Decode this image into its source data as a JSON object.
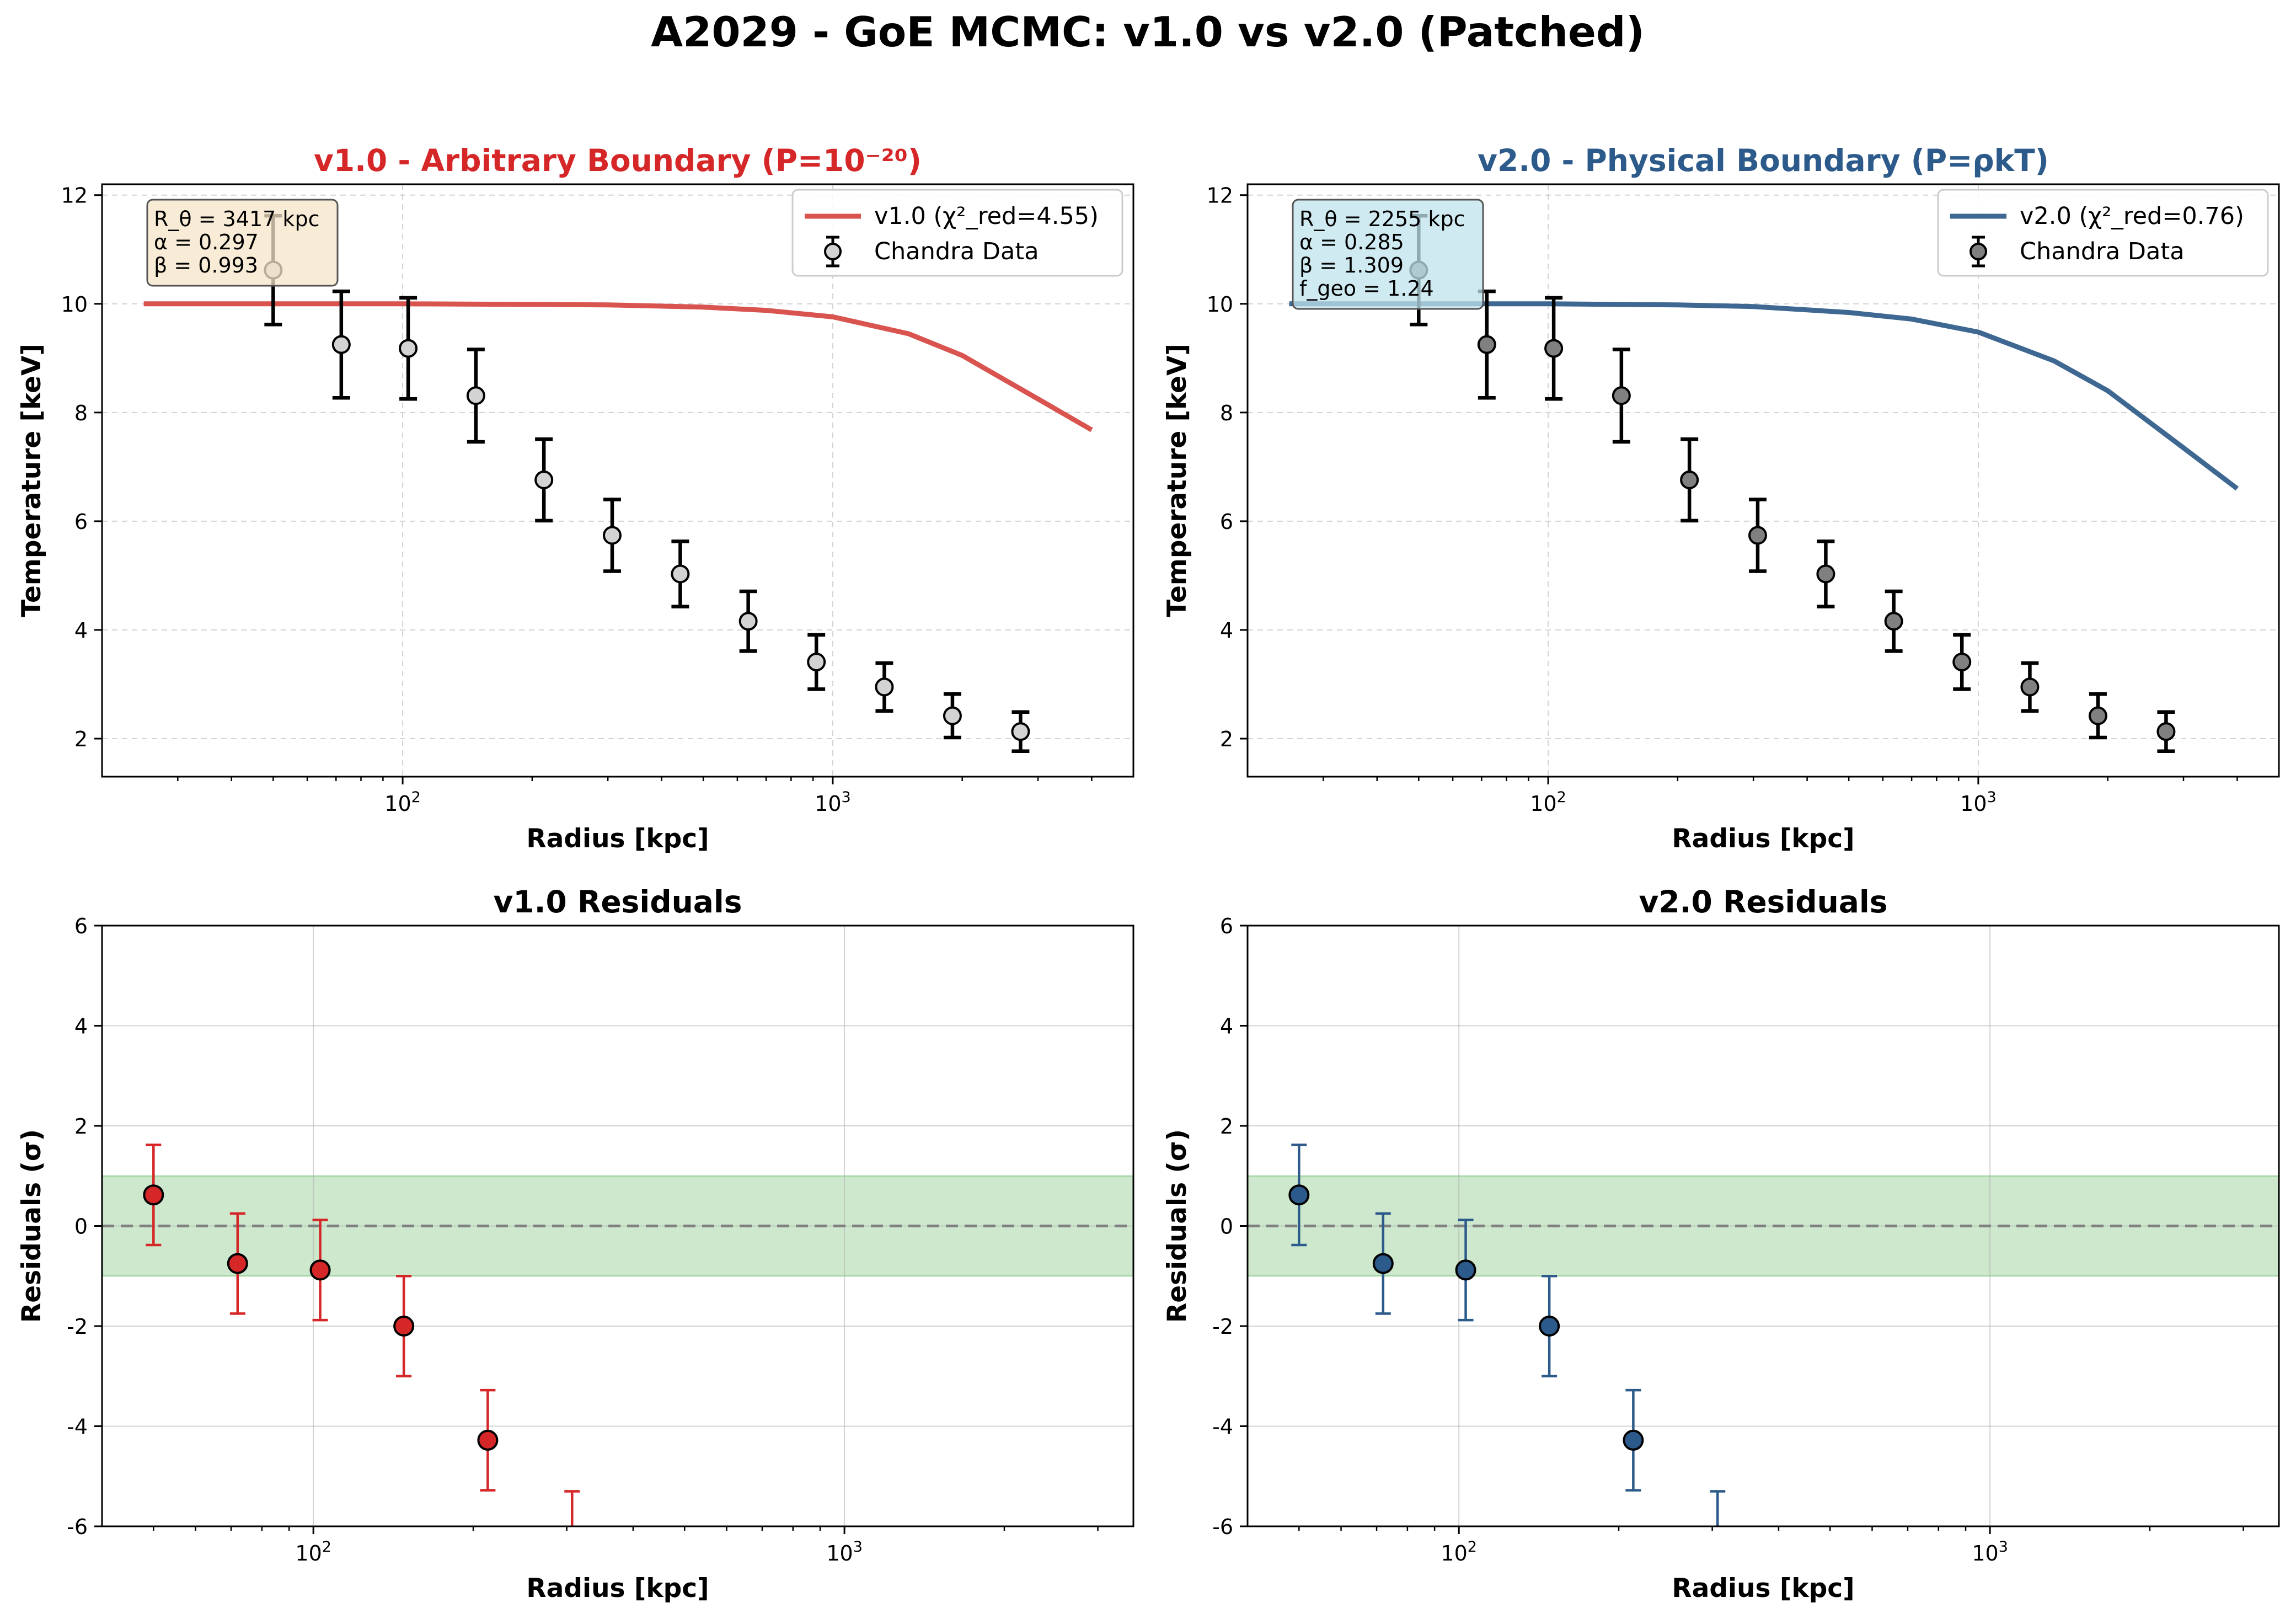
{
  "figure": {
    "suptitle": "A2029 - GoE MCMC: v1.0 vs v2.0 (Patched)"
  },
  "colors": {
    "v1": "#d62728",
    "v1_line": "#d9534f",
    "v2": "#2c5a8a",
    "v2_line": "#3e6892",
    "band": "#2ca02c",
    "zero_line": "#808080"
  },
  "chart_data": [
    {
      "id": "v1-profile",
      "type": "line",
      "title": "v1.0 - Arbitrary Boundary (P=10⁻²⁰)",
      "title_color": "#d62728",
      "xlabel": "Radius [kpc]",
      "ylabel": "Temperature [keV]",
      "xscale": "log",
      "xlim": [
        20,
        5000
      ],
      "ylim": [
        1.3,
        12.2
      ],
      "xticks": [
        {
          "value": 100,
          "base": "10",
          "exp": "2"
        },
        {
          "value": 1000,
          "base": "10",
          "exp": "3"
        }
      ],
      "yticks": [
        2,
        4,
        6,
        8,
        10,
        12
      ],
      "grid": "on (dashed)",
      "legend_position": "upper-right",
      "model": {
        "name": "v1.0 (χ²_red=4.55)",
        "x": [
          25,
          50,
          100,
          200,
          300,
          500,
          700,
          1000,
          1500,
          2000,
          3000,
          4000
        ],
        "y": [
          10.0,
          10.0,
          10.0,
          9.99,
          9.98,
          9.94,
          9.88,
          9.76,
          9.45,
          9.05,
          8.25,
          7.68
        ]
      },
      "data": {
        "name": "Chandra Data",
        "marker_fill": "#d3d3d3",
        "x": [
          50,
          72,
          103,
          148,
          213,
          307,
          442,
          636,
          916,
          1318,
          1898,
          2733
        ],
        "y": [
          10.62,
          9.25,
          9.18,
          8.31,
          6.76,
          5.74,
          5.03,
          4.16,
          3.41,
          2.95,
          2.42,
          2.13
        ],
        "err": [
          1.0,
          0.98,
          0.93,
          0.85,
          0.75,
          0.66,
          0.6,
          0.55,
          0.5,
          0.44,
          0.4,
          0.36
        ]
      },
      "params": {
        "lines": [
          "R_θ = 3417 kpc",
          "α = 0.297",
          "β = 0.993"
        ],
        "box_color": "#f5e6c8"
      }
    },
    {
      "id": "v2-profile",
      "type": "line",
      "title": "v2.0 - Physical Boundary (P=ρkT)",
      "title_color": "#2c5a8a",
      "xlabel": "Radius [kpc]",
      "ylabel": "Temperature [keV]",
      "xscale": "log",
      "xlim": [
        20,
        5000
      ],
      "ylim": [
        1.3,
        12.2
      ],
      "xticks": [
        {
          "value": 100,
          "base": "10",
          "exp": "2"
        },
        {
          "value": 1000,
          "base": "10",
          "exp": "3"
        }
      ],
      "yticks": [
        2,
        4,
        6,
        8,
        10,
        12
      ],
      "grid": "on (dashed)",
      "legend_position": "upper-right",
      "model": {
        "name": "v2.0 (χ²_red=0.76)",
        "x": [
          25,
          50,
          100,
          200,
          300,
          500,
          700,
          1000,
          1500,
          2000,
          3000,
          4000
        ],
        "y": [
          10.0,
          10.0,
          10.0,
          9.98,
          9.95,
          9.84,
          9.72,
          9.48,
          8.95,
          8.4,
          7.35,
          6.6
        ]
      },
      "data": {
        "name": "Chandra Data",
        "marker_fill": "#808080",
        "x": [
          50,
          72,
          103,
          148,
          213,
          307,
          442,
          636,
          916,
          1318,
          1898,
          2733
        ],
        "y": [
          10.62,
          9.25,
          9.18,
          8.31,
          6.76,
          5.74,
          5.03,
          4.16,
          3.41,
          2.95,
          2.42,
          2.13
        ],
        "err": [
          1.0,
          0.98,
          0.93,
          0.85,
          0.75,
          0.66,
          0.6,
          0.55,
          0.5,
          0.44,
          0.4,
          0.36
        ]
      },
      "params": {
        "lines": [
          "R_θ = 2255 kpc",
          "α = 0.285",
          "β = 1.309",
          "f_geo = 1.24"
        ],
        "box_color": "#bfe3ec"
      }
    },
    {
      "id": "v1-residuals",
      "type": "scatter",
      "title": "v1.0 Residuals",
      "xlabel": "Radius [kpc]",
      "ylabel": "Residuals (σ)",
      "xscale": "log",
      "xlim": [
        40,
        3500
      ],
      "ylim": [
        -6,
        6
      ],
      "xticks": [
        {
          "value": 100,
          "base": "10",
          "exp": "2"
        },
        {
          "value": 1000,
          "base": "10",
          "exp": "3"
        }
      ],
      "yticks": [
        -6,
        -4,
        -2,
        0,
        2,
        4,
        6
      ],
      "grid": "on",
      "band": [
        -1,
        1
      ],
      "x": [
        50,
        72,
        103,
        148,
        213,
        307
      ],
      "y": [
        0.62,
        -0.75,
        -0.88,
        -2.0,
        -4.28,
        -6.3
      ],
      "err": [
        1.0,
        1.0,
        1.0,
        1.0,
        1.0,
        1.0
      ]
    },
    {
      "id": "v2-residuals",
      "type": "scatter",
      "title": "v2.0 Residuals",
      "xlabel": "Radius [kpc]",
      "ylabel": "Residuals (σ)",
      "xscale": "log",
      "xlim": [
        40,
        3500
      ],
      "ylim": [
        -6,
        6
      ],
      "xticks": [
        {
          "value": 100,
          "base": "10",
          "exp": "2"
        },
        {
          "value": 1000,
          "base": "10",
          "exp": "3"
        }
      ],
      "yticks": [
        -6,
        -4,
        -2,
        0,
        2,
        4,
        6
      ],
      "grid": "on",
      "band": [
        -1,
        1
      ],
      "x": [
        50,
        72,
        103,
        148,
        213,
        307
      ],
      "y": [
        0.62,
        -0.75,
        -0.88,
        -2.0,
        -4.28,
        -6.3
      ],
      "err": [
        1.0,
        1.0,
        1.0,
        1.0,
        1.0,
        1.0
      ]
    }
  ]
}
